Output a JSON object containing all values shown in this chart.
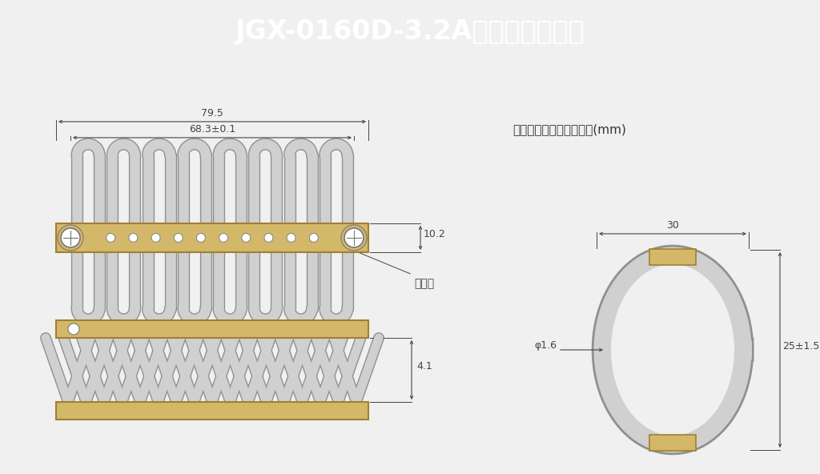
{
  "title": "JGX-0160D-3.2A产品结构示意图",
  "title_bg_color": "#1a3eb5",
  "title_text_color": "#ffffff",
  "bg_color": "#e8e8e8",
  "content_bg": "#f0f0f0",
  "wire_color": "#d0d0d0",
  "wire_edge_color": "#909090",
  "plate_color": "#d4b86a",
  "plate_edge_color": "#a08030",
  "dim_color": "#444444",
  "note_text": "注：所有的尺寸均为毫米(mm)",
  "label_anzhuangkong": "安装孔",
  "dim_795": "79.5",
  "dim_683": "68.3±0.1",
  "dim_102": "10.2",
  "dim_41": "4.1",
  "dim_30": "30",
  "dim_phi16": "φ1.6",
  "dim_251": "25±1.5"
}
